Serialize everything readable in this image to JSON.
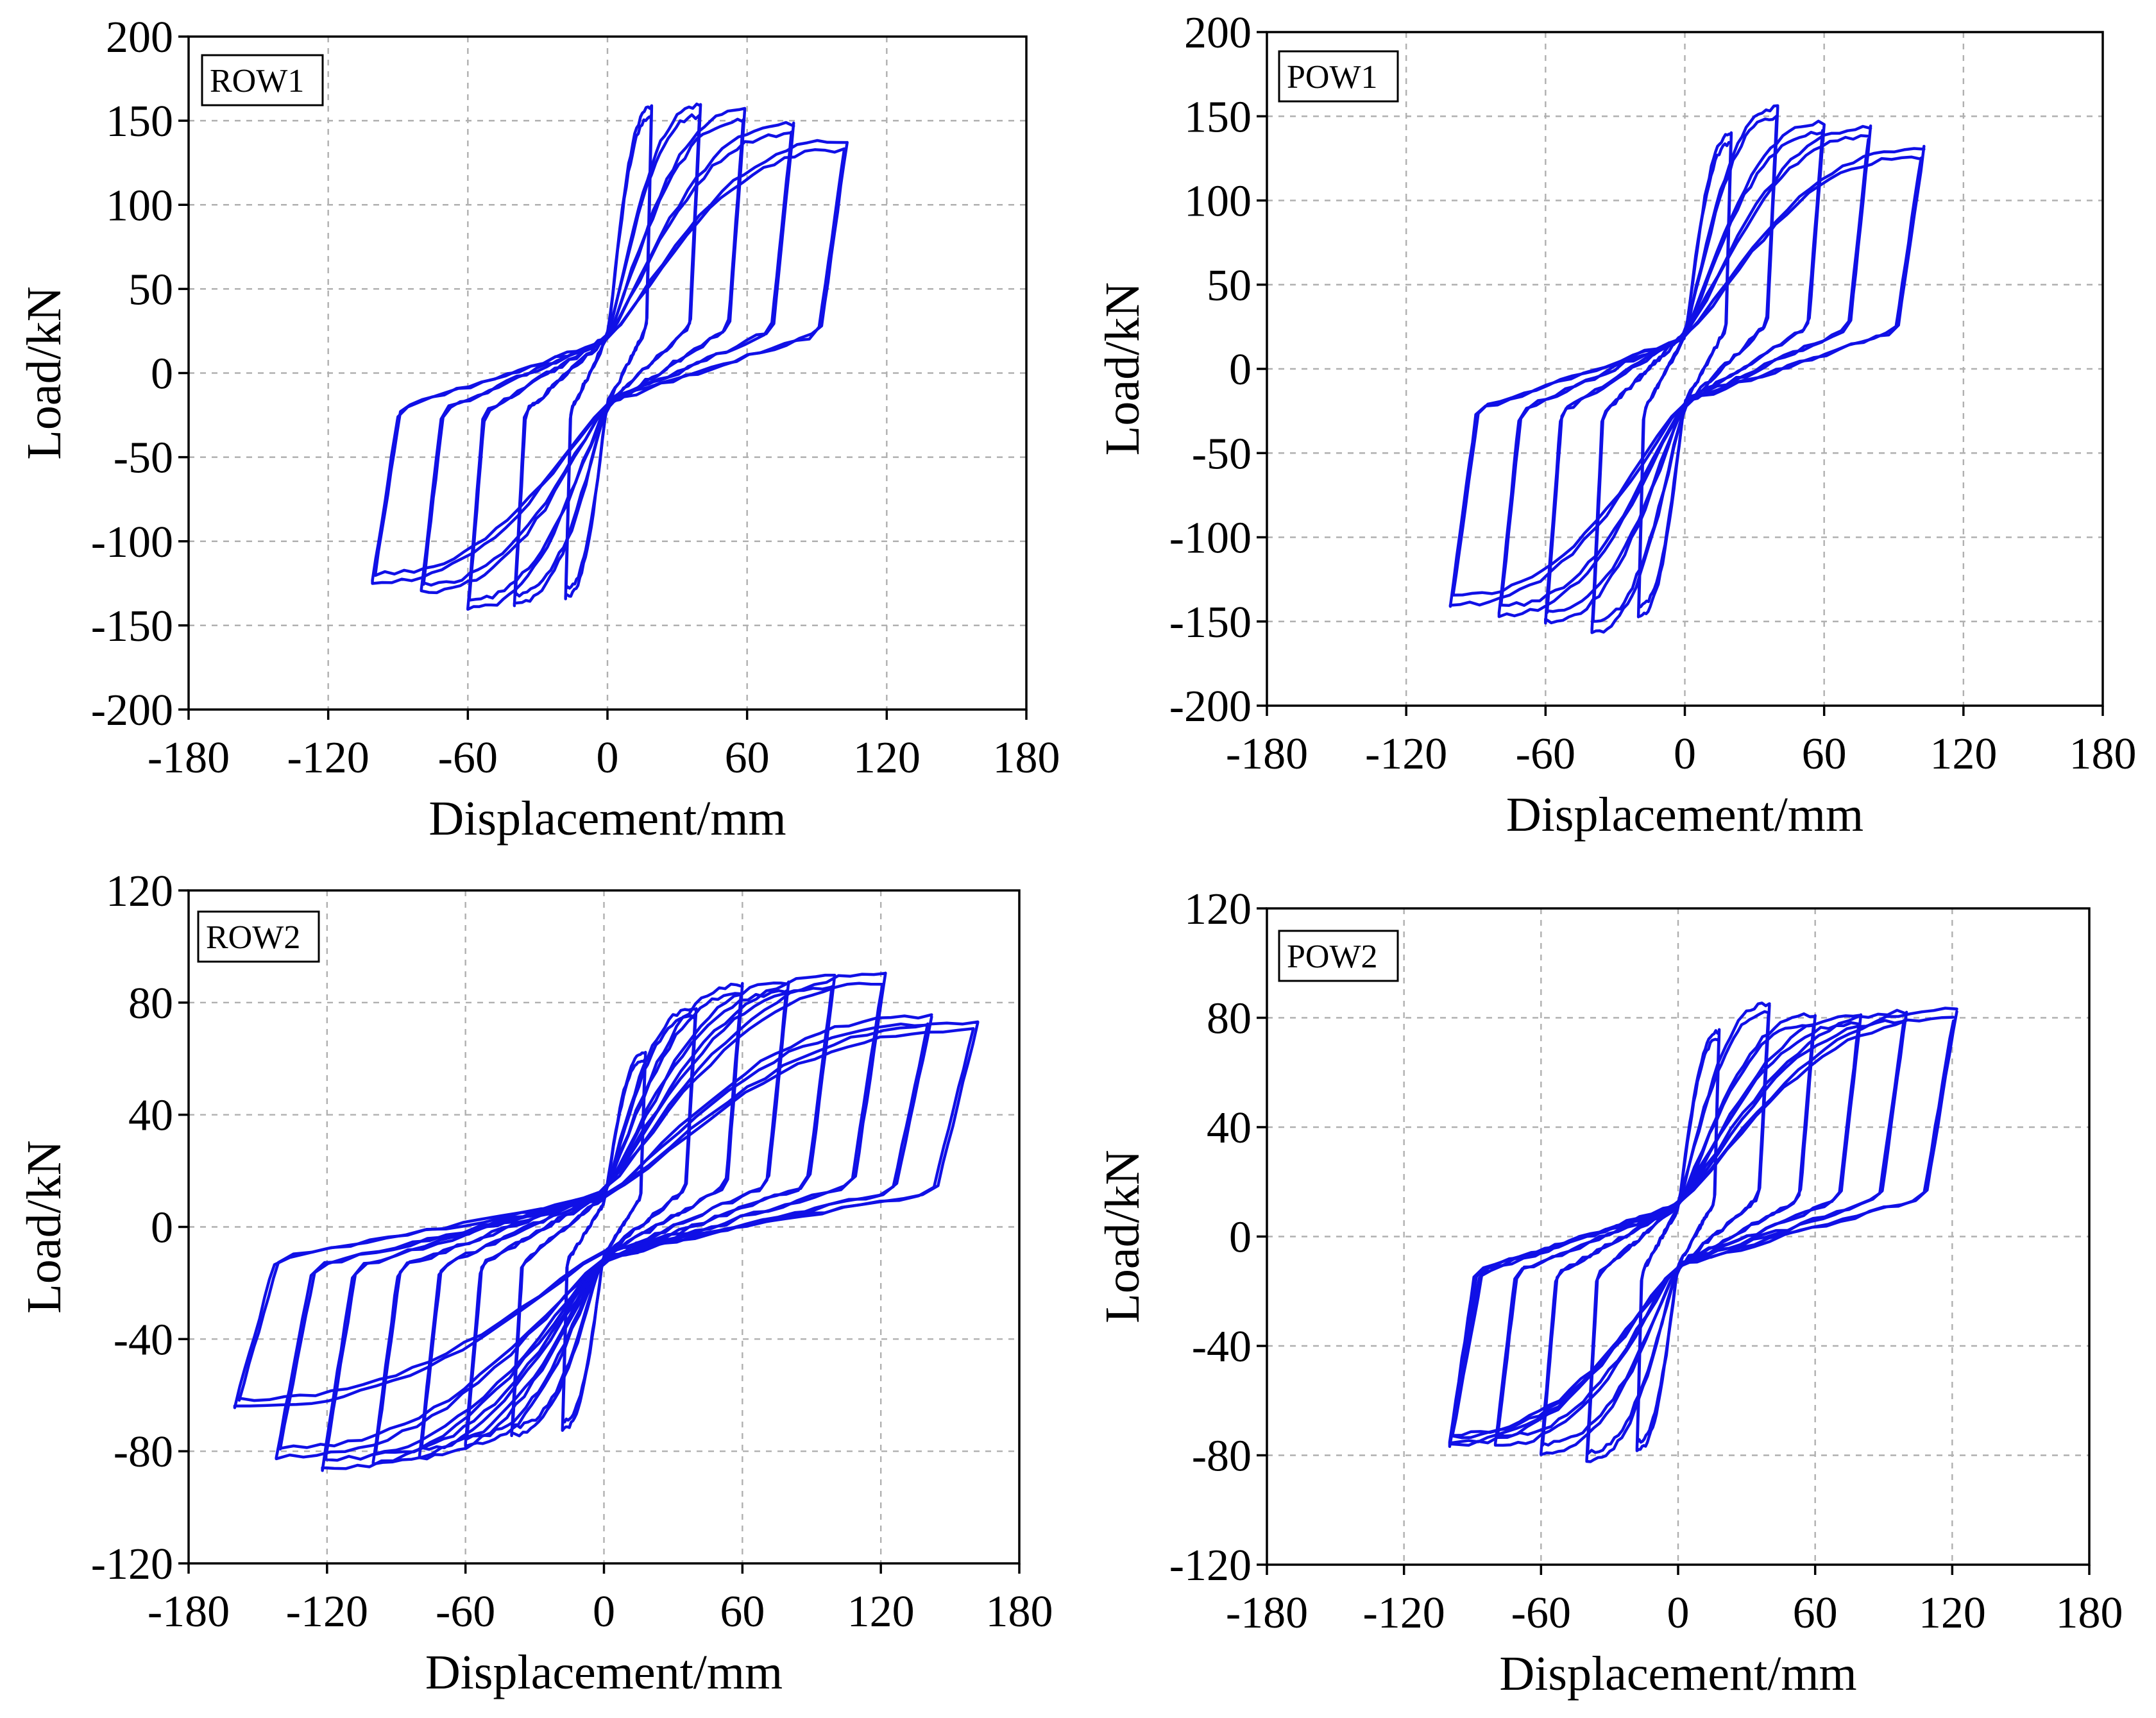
{
  "figure": {
    "palette": {
      "curve": "#1010e6",
      "frame": "#000000",
      "grid": "#b0b0b0"
    }
  },
  "chart_data": [
    {
      "type": "line",
      "panel": "top-left",
      "label": "ROW1",
      "xlabel": "Displacement/mm",
      "ylabel": "Load/kN",
      "xlim": [
        -180,
        180
      ],
      "ylim": [
        -200,
        200
      ],
      "xticks": [
        "-180",
        "-120",
        "-60",
        "0",
        "60",
        "120",
        "180"
      ],
      "yticks": [
        "200",
        "150",
        "100",
        "50",
        "0",
        "-50",
        "-100",
        "-150",
        "-200"
      ],
      "grid": true,
      "series": [
        {
          "name": "ROW1 hysteresis",
          "loops": [
            {
              "umax": 19,
              "pmax": 158,
              "umin": -18,
              "pmin": -133
            },
            {
              "umax": 40,
              "pmax": 159,
              "umin": -40,
              "pmin": -137
            },
            {
              "umax": 59,
              "pmax": 156,
              "umin": -60,
              "pmin": -140
            },
            {
              "umax": 80,
              "pmax": 148,
              "umin": -80,
              "pmin": -130
            },
            {
              "umax": 103,
              "pmax": 138,
              "umin": -101,
              "pmin": -124
            }
          ]
        }
      ]
    },
    {
      "type": "line",
      "panel": "top-right",
      "label": "POW1",
      "xlabel": "Displacement/mm",
      "ylabel": "Load/kN",
      "xlim": [
        -180,
        180
      ],
      "ylim": [
        -200,
        200
      ],
      "xticks": [
        "-180",
        "-120",
        "-60",
        "0",
        "60",
        "120",
        "180"
      ],
      "yticks": [
        "200",
        "150",
        "100",
        "50",
        "0",
        "-50",
        "-100",
        "-150",
        "-200"
      ],
      "grid": true,
      "series": [
        {
          "name": "POW1 hysteresis",
          "loops": [
            {
              "umax": 20,
              "pmax": 139,
              "umin": -20,
              "pmin": -147
            },
            {
              "umax": 40,
              "pmax": 155,
              "umin": -40,
              "pmin": -156
            },
            {
              "umax": 60,
              "pmax": 146,
              "umin": -60,
              "pmin": -150
            },
            {
              "umax": 80,
              "pmax": 143,
              "umin": -80,
              "pmin": -146
            },
            {
              "umax": 103,
              "pmax": 131,
              "umin": -101,
              "pmin": -140
            }
          ]
        }
      ]
    },
    {
      "type": "line",
      "panel": "bottom-left",
      "label": "ROW2",
      "xlabel": "Displacement/mm",
      "ylabel": "Load/kN",
      "xlim": [
        -180,
        180
      ],
      "ylim": [
        -120,
        120
      ],
      "xticks": [
        "-180",
        "-120",
        "-60",
        "0",
        "60",
        "120",
        "180"
      ],
      "yticks": [
        "120",
        "80",
        "40",
        "0",
        "-40",
        "-80",
        "-120"
      ],
      "grid": true,
      "series": [
        {
          "name": "ROW2 hysteresis",
          "loops": [
            {
              "umax": 18,
              "pmax": 62,
              "umin": -18,
              "pmin": -72
            },
            {
              "umax": 40,
              "pmax": 78,
              "umin": -40,
              "pmin": -74
            },
            {
              "umax": 60,
              "pmax": 86,
              "umin": -60,
              "pmin": -78
            },
            {
              "umax": 80,
              "pmax": 87,
              "umin": -80,
              "pmin": -82
            },
            {
              "umax": 100,
              "pmax": 89,
              "umin": -100,
              "pmin": -84
            },
            {
              "umax": 122,
              "pmax": 90,
              "umin": -122,
              "pmin": -86
            },
            {
              "umax": 142,
              "pmax": 75,
              "umin": -142,
              "pmin": -82
            },
            {
              "umax": 162,
              "pmax": 73,
              "umin": -160,
              "pmin": -64
            }
          ]
        }
      ]
    },
    {
      "type": "line",
      "panel": "bottom-right",
      "label": "POW2",
      "xlabel": "Displacement/mm",
      "ylabel": "Load/kN",
      "xlim": [
        -180,
        180
      ],
      "ylim": [
        -120,
        120
      ],
      "xticks": [
        "-180",
        "-120",
        "-60",
        "0",
        "60",
        "120",
        "180"
      ],
      "yticks": [
        "120",
        "80",
        "40",
        "0",
        "-40",
        "-80",
        "-120"
      ],
      "grid": true,
      "series": [
        {
          "name": "POW2 hysteresis",
          "loops": [
            {
              "umax": 18,
              "pmax": 75,
              "umin": -18,
              "pmin": -78
            },
            {
              "umax": 40,
              "pmax": 85,
              "umin": -40,
              "pmin": -82
            },
            {
              "umax": 60,
              "pmax": 81,
              "umin": -60,
              "pmin": -79
            },
            {
              "umax": 80,
              "pmax": 81,
              "umin": -80,
              "pmin": -76
            },
            {
              "umax": 100,
              "pmax": 82,
              "umin": -100,
              "pmin": -75
            },
            {
              "umax": 122,
              "pmax": 83,
              "umin": -100,
              "pmin": -76
            }
          ]
        }
      ]
    }
  ]
}
